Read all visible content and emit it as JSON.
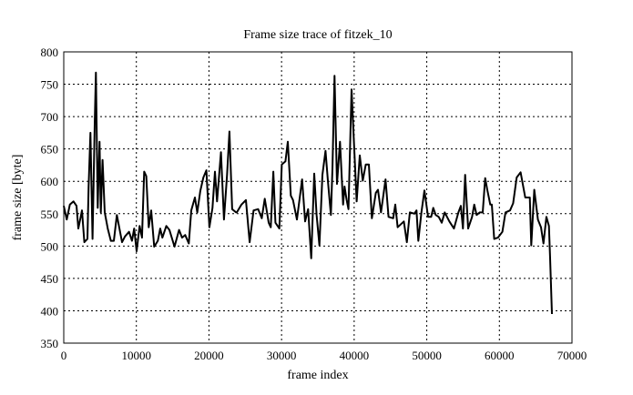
{
  "chart_data": {
    "type": "line",
    "title": "Frame size trace of fitzek_10",
    "xlabel": "frame index",
    "ylabel": "frame size [byte]",
    "xlim": [
      0,
      70000
    ],
    "ylim": [
      350,
      800
    ],
    "xticks": [
      "0",
      "10000",
      "20000",
      "30000",
      "40000",
      "50000",
      "60000",
      "70000"
    ],
    "yticks": [
      "350",
      "400",
      "450",
      "500",
      "550",
      "600",
      "650",
      "700",
      "750",
      "800"
    ],
    "grid": true,
    "line_color": "#000000",
    "series": [
      {
        "x": [
          0,
          420,
          840,
          1340,
          1760,
          2010,
          2300,
          2510,
          2840,
          3260,
          3430,
          3680,
          3970,
          4260,
          4430,
          4680,
          4930,
          5100,
          5350,
          5640,
          6060,
          6480,
          6900,
          7310,
          8030,
          8440,
          8990,
          9400,
          9700,
          10030,
          10450,
          10780,
          11080,
          11370,
          11700,
          12040,
          12460,
          12960,
          13290,
          13580,
          14130,
          14550,
          15260,
          15880,
          16300,
          16720,
          17220,
          17560,
          18060,
          18390,
          18810,
          19230,
          19650,
          20060,
          20480,
          20820,
          21110,
          21650,
          22070,
          22490,
          22820,
          23200,
          23740,
          23840,
          24470,
          25090,
          25600,
          26140,
          26770,
          27270,
          27690,
          28230,
          28520,
          28860,
          29150,
          29690,
          30030,
          30530,
          30860,
          31280,
          31570,
          32120,
          32830,
          33240,
          33660,
          34080,
          34500,
          34830,
          35210,
          35630,
          36050,
          36380,
          36800,
          37010,
          37300,
          37630,
          38050,
          38470,
          38680,
          38970,
          39220,
          39640,
          39930,
          40350,
          40770,
          41190,
          41600,
          42020,
          42440,
          42980,
          43280,
          43690,
          44320,
          44740,
          45370,
          45660,
          45990,
          46840,
          47260,
          47670,
          48300,
          48590,
          48840,
          49260,
          49680,
          50180,
          50600,
          50890,
          51230,
          51650,
          52060,
          52480,
          53110,
          53740,
          54360,
          54700,
          54990,
          55280,
          55700,
          56240,
          56540,
          56870,
          57290,
          57710,
          58040,
          58330,
          58750,
          58960,
          59290,
          59800,
          60420,
          60840,
          61470,
          61890,
          62390,
          62930,
          63560,
          64190,
          64390,
          64810,
          65310,
          65730,
          66070,
          66480,
          66820,
          66990,
          67240
        ],
        "y": [
          562,
          541,
          564,
          569,
          562,
          527,
          543,
          555,
          506,
          511,
          592,
          675,
          511,
          689,
          768,
          559,
          661,
          552,
          633,
          552,
          527,
          508,
          508,
          548,
          506,
          515,
          522,
          508,
          527,
          492,
          531,
          513,
          615,
          608,
          529,
          555,
          499,
          508,
          527,
          513,
          531,
          525,
          499,
          525,
          513,
          517,
          504,
          555,
          575,
          552,
          585,
          606,
          617,
          529,
          559,
          615,
          569,
          645,
          541,
          610,
          677,
          557,
          552,
          552,
          564,
          571,
          506,
          555,
          557,
          543,
          573,
          536,
          529,
          615,
          536,
          527,
          626,
          631,
          661,
          578,
          571,
          541,
          603,
          538,
          557,
          481,
          612,
          548,
          501,
          610,
          647,
          601,
          548,
          619,
          763,
          596,
          661,
          564,
          592,
          571,
          557,
          742,
          670,
          569,
          640,
          601,
          626,
          626,
          543,
          582,
          587,
          552,
          603,
          545,
          543,
          564,
          529,
          538,
          506,
          552,
          550,
          555,
          508,
          552,
          586,
          545,
          545,
          559,
          548,
          545,
          536,
          552,
          538,
          527,
          552,
          562,
          527,
          610,
          527,
          545,
          564,
          548,
          552,
          552,
          605,
          587,
          564,
          564,
          511,
          513,
          522,
          552,
          555,
          566,
          606,
          614,
          575,
          575,
          501,
          587,
          541,
          529,
          504,
          545,
          531,
          481,
          395
        ]
      }
    ]
  }
}
